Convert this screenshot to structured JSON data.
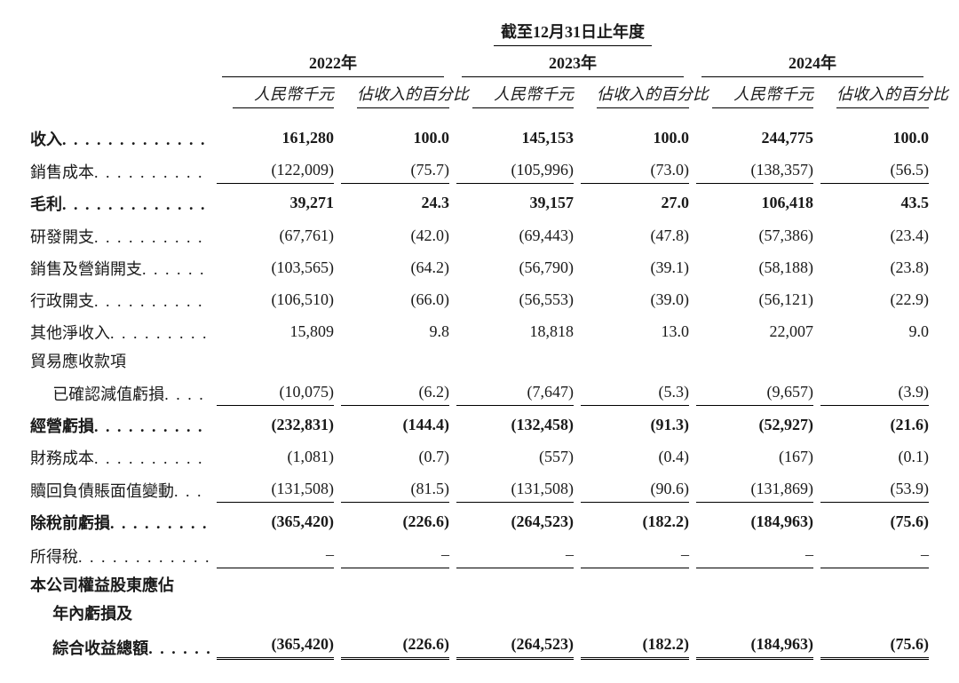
{
  "colors": {
    "text": "#1a1a1a",
    "rule": "#000000",
    "background": "#ffffff"
  },
  "font": {
    "family": "Times New Roman / SimSun",
    "base_size_pt": 13
  },
  "header": {
    "period_title": "截至12月31日止年度",
    "years": [
      "2022年",
      "2023年",
      "2024年"
    ],
    "col_a": "人民幣千元",
    "col_b": "佔收入的百分比"
  },
  "dots": ". . . . . . . . . . . . . . . . . . . . . . . .",
  "rows": [
    {
      "label": "收入",
      "bold": true,
      "vals": [
        "161,280",
        "100.0",
        "145,153",
        "100.0",
        "244,775",
        "100.0"
      ]
    },
    {
      "label": "銷售成本",
      "vals": [
        "(122,009)",
        "(75.7)",
        "(105,996)",
        "(73.0)",
        "(138,357)",
        "(56.5)"
      ],
      "bottom_rule": true
    },
    {
      "label": "毛利",
      "bold": true,
      "vals": [
        "39,271",
        "24.3",
        "39,157",
        "27.0",
        "106,418",
        "43.5"
      ],
      "top_rule": false
    },
    {
      "label": "研發開支",
      "vals": [
        "(67,761)",
        "(42.0)",
        "(69,443)",
        "(47.8)",
        "(57,386)",
        "(23.4)"
      ]
    },
    {
      "label": "銷售及營銷開支",
      "vals": [
        "(103,565)",
        "(64.2)",
        "(56,790)",
        "(39.1)",
        "(58,188)",
        "(23.8)"
      ]
    },
    {
      "label": "行政開支",
      "vals": [
        "(106,510)",
        "(66.0)",
        "(56,553)",
        "(39.0)",
        "(56,121)",
        "(22.9)"
      ]
    },
    {
      "label": "其他淨收入",
      "vals": [
        "15,809",
        "9.8",
        "18,818",
        "13.0",
        "22,007",
        "9.0"
      ]
    },
    {
      "label": "貿易應收款項",
      "no_dots": true,
      "vals": [
        "",
        "",
        "",
        "",
        "",
        ""
      ]
    },
    {
      "label": "已確認減值虧損",
      "indent": 1,
      "vals": [
        "(10,075)",
        "(6.2)",
        "(7,647)",
        "(5.3)",
        "(9,657)",
        "(3.9)"
      ],
      "bottom_rule": true
    },
    {
      "label": "經營虧損",
      "bold": true,
      "vals": [
        "(232,831)",
        "(144.4)",
        "(132,458)",
        "(91.3)",
        "(52,927)",
        "(21.6)"
      ]
    },
    {
      "label": "財務成本",
      "vals": [
        "(1,081)",
        "(0.7)",
        "(557)",
        "(0.4)",
        "(167)",
        "(0.1)"
      ]
    },
    {
      "label": "贖回負債賬面值變動",
      "vals": [
        "(131,508)",
        "(81.5)",
        "(131,508)",
        "(90.6)",
        "(131,869)",
        "(53.9)"
      ],
      "bottom_rule": true
    },
    {
      "label": "除稅前虧損",
      "bold": true,
      "vals": [
        "(365,420)",
        "(226.6)",
        "(264,523)",
        "(182.2)",
        "(184,963)",
        "(75.6)"
      ]
    },
    {
      "label": "所得稅",
      "vals": [
        "–",
        "–",
        "–",
        "–",
        "–",
        "–"
      ],
      "bottom_rule": true
    },
    {
      "label": "本公司權益股東應佔",
      "bold": true,
      "no_dots": true,
      "vals": [
        "",
        "",
        "",
        "",
        "",
        ""
      ]
    },
    {
      "label": "年內虧損及",
      "bold": true,
      "indent": 1,
      "no_dots": true,
      "vals": [
        "",
        "",
        "",
        "",
        "",
        ""
      ]
    },
    {
      "label": "綜合收益總額",
      "bold": true,
      "indent": 1,
      "vals": [
        "(365,420)",
        "(226.6)",
        "(264,523)",
        "(182.2)",
        "(184,963)",
        "(75.6)"
      ],
      "double_rule": true
    }
  ]
}
